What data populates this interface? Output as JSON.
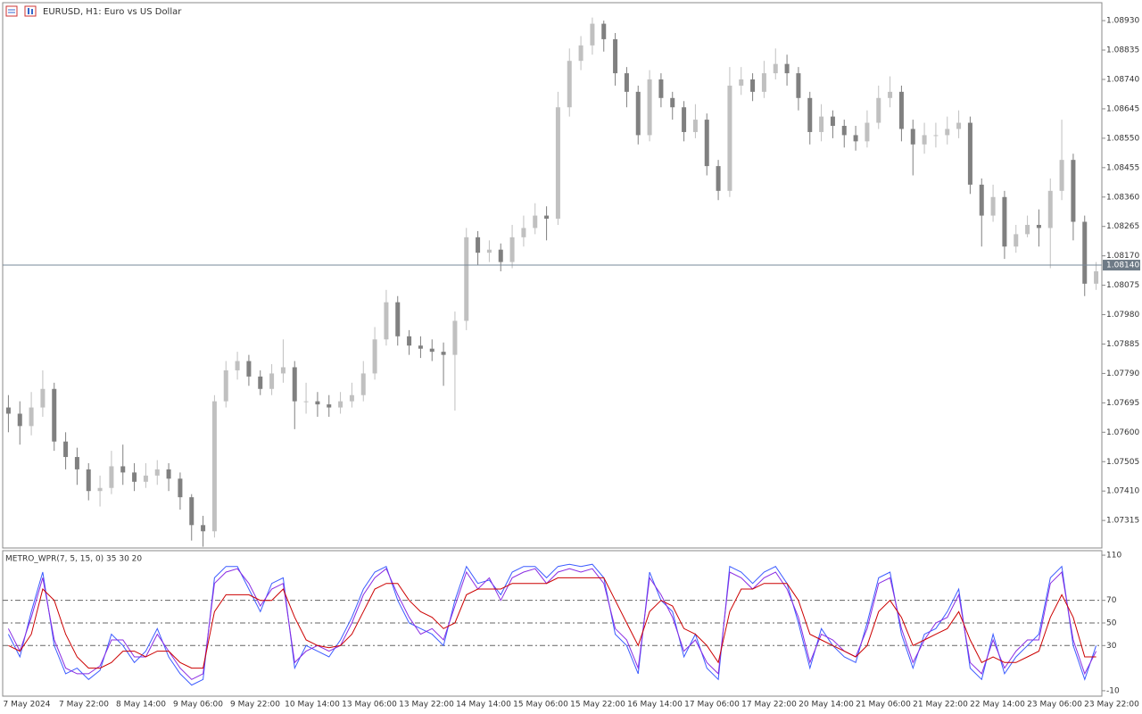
{
  "chart_data": [
    {
      "type": "candlestick",
      "title": "EURUSD, H1:  Euro vs US Dollar",
      "up_color": "#c0c0c0",
      "down_color": "#808080",
      "open": [
        1.0768,
        1.0766,
        1.0762,
        1.0768,
        1.0774,
        1.0757,
        1.0752,
        1.0748,
        1.0741,
        1.0742,
        1.0749,
        1.0747,
        1.0744,
        1.0746,
        1.0748,
        1.0745,
        1.0739,
        1.073,
        1.0728,
        1.077,
        1.078,
        1.0783,
        1.0778,
        1.0774,
        1.0779,
        1.0781,
        1.077,
        1.077,
        1.0769,
        1.0768,
        1.077,
        1.0772,
        1.0779,
        1.079,
        1.0802,
        1.0791,
        1.0788,
        1.0787,
        1.0786,
        1.0785,
        1.0796,
        1.0823,
        1.0818,
        1.0819,
        1.0815,
        1.0823,
        1.0826,
        1.083,
        1.0829,
        1.0865,
        1.088,
        1.0885,
        1.0892,
        1.0887,
        1.0876,
        1.087,
        1.0856,
        1.0874,
        1.0868,
        1.0865,
        1.0857,
        1.0861,
        1.0846,
        1.0838,
        1.0872,
        1.0874,
        1.087,
        1.0876,
        1.0879,
        1.0876,
        1.0868,
        1.0857,
        1.0862,
        1.0859,
        1.0856,
        1.0854,
        1.086,
        1.0868,
        1.087,
        1.0858,
        1.0853,
        1.0856,
        1.0856,
        1.0858,
        1.086,
        1.084,
        1.083,
        1.0836,
        1.082,
        1.0824,
        1.0827,
        1.0826,
        1.0838,
        1.0848,
        1.0828,
        1.0808
      ],
      "high": [
        1.0772,
        1.077,
        1.0773,
        1.078,
        1.0776,
        1.076,
        1.0755,
        1.075,
        1.0746,
        1.0754,
        1.0756,
        1.075,
        1.075,
        1.0751,
        1.075,
        1.0747,
        1.074,
        1.0733,
        1.0772,
        1.0783,
        1.0786,
        1.0785,
        1.078,
        1.0782,
        1.079,
        1.0783,
        1.0776,
        1.0773,
        1.0772,
        1.0773,
        1.0776,
        1.0783,
        1.0794,
        1.0806,
        1.0804,
        1.0793,
        1.0791,
        1.079,
        1.0789,
        1.0799,
        1.0826,
        1.0825,
        1.0822,
        1.0821,
        1.0827,
        1.083,
        1.0834,
        1.0833,
        1.087,
        1.0884,
        1.0888,
        1.0894,
        1.0893,
        1.0889,
        1.0878,
        1.0872,
        1.0877,
        1.0876,
        1.087,
        1.0867,
        1.0866,
        1.0863,
        1.0848,
        1.0878,
        1.0878,
        1.0876,
        1.088,
        1.0884,
        1.0882,
        1.0878,
        1.087,
        1.0866,
        1.0864,
        1.0861,
        1.0859,
        1.0864,
        1.0872,
        1.0875,
        1.0872,
        1.0861,
        1.086,
        1.086,
        1.0862,
        1.0864,
        1.0862,
        1.0842,
        1.084,
        1.0838,
        1.0827,
        1.083,
        1.0832,
        1.0842,
        1.0861,
        1.085,
        1.083,
        1.0815
      ],
      "low": [
        1.076,
        1.0756,
        1.0759,
        1.0765,
        1.0754,
        1.0748,
        1.0743,
        1.0738,
        1.0736,
        1.074,
        1.0743,
        1.0741,
        1.0742,
        1.0743,
        1.0741,
        1.0735,
        1.0725,
        1.0723,
        1.0726,
        1.0768,
        1.0777,
        1.0775,
        1.0772,
        1.0772,
        1.0776,
        1.0761,
        1.0766,
        1.0765,
        1.0765,
        1.0766,
        1.0768,
        1.077,
        1.0777,
        1.0788,
        1.0788,
        1.0785,
        1.0784,
        1.0783,
        1.0775,
        1.0767,
        1.0793,
        1.0814,
        1.0815,
        1.0812,
        1.0813,
        1.082,
        1.0824,
        1.0822,
        1.0827,
        1.0862,
        1.0877,
        1.0882,
        1.0883,
        1.0872,
        1.0865,
        1.0853,
        1.0854,
        1.0865,
        1.0861,
        1.0854,
        1.0855,
        1.0843,
        1.0835,
        1.0836,
        1.0869,
        1.0867,
        1.0868,
        1.0874,
        1.0872,
        1.0864,
        1.0853,
        1.0854,
        1.0855,
        1.0852,
        1.0851,
        1.0852,
        1.0858,
        1.0865,
        1.0854,
        1.0843,
        1.085,
        1.0852,
        1.0853,
        1.0855,
        1.0837,
        1.082,
        1.0828,
        1.0816,
        1.0818,
        1.0823,
        1.082,
        1.0813,
        1.0835,
        1.0822,
        1.0804,
        1.0806
      ],
      "close": [
        1.0766,
        1.0762,
        1.0768,
        1.0774,
        1.0757,
        1.0752,
        1.0748,
        1.0741,
        1.0742,
        1.0749,
        1.0747,
        1.0744,
        1.0746,
        1.0748,
        1.0745,
        1.0739,
        1.073,
        1.0728,
        1.077,
        1.078,
        1.0783,
        1.0778,
        1.0774,
        1.0779,
        1.0781,
        1.077,
        1.077,
        1.0769,
        1.0768,
        1.077,
        1.0772,
        1.0779,
        1.079,
        1.0802,
        1.0791,
        1.0788,
        1.0787,
        1.0786,
        1.0785,
        1.0796,
        1.0823,
        1.0818,
        1.0819,
        1.0815,
        1.0823,
        1.0826,
        1.083,
        1.0829,
        1.0865,
        1.088,
        1.0885,
        1.0892,
        1.0887,
        1.0876,
        1.087,
        1.0856,
        1.0874,
        1.0868,
        1.0865,
        1.0857,
        1.0861,
        1.0846,
        1.0838,
        1.0872,
        1.0874,
        1.087,
        1.0876,
        1.0879,
        1.0876,
        1.0868,
        1.0857,
        1.0862,
        1.0859,
        1.0856,
        1.0854,
        1.086,
        1.0868,
        1.087,
        1.0858,
        1.0853,
        1.0856,
        1.0856,
        1.0858,
        1.086,
        1.084,
        1.083,
        1.0836,
        1.082,
        1.0824,
        1.0827,
        1.0826,
        1.0838,
        1.0848,
        1.0828,
        1.0808,
        1.0812
      ],
      "ylim": [
        1.07226,
        1.08988
      ],
      "yticks": [
        {
          "value": 1.0893,
          "label": "1.08930"
        },
        1.08835,
        {
          "value": 1.0874,
          "label": "1.08740"
        },
        1.08645,
        {
          "value": 1.0855,
          "label": "1.08550"
        },
        1.08455,
        {
          "value": 1.0836,
          "label": "1.08360"
        },
        1.08265,
        {
          "value": 1.0817,
          "label": "1.08170"
        },
        1.08075,
        {
          "value": 1.0798,
          "label": "1.07980"
        },
        1.07885,
        {
          "value": 1.0779,
          "label": "1.07790"
        },
        1.07695,
        {
          "value": 1.076,
          "label": "1.07600"
        },
        1.07505,
        {
          "value": 1.0741,
          "label": "1.07410"
        },
        1.07315
      ],
      "price_line": {
        "value": 1.0814,
        "label": "1.08140"
      }
    },
    {
      "type": "line",
      "title": "METRO_WPR(7, 5, 15, 0) 35 30 20",
      "series": [
        {
          "color": "#3b5bff",
          "values": [
            40,
            20,
            60,
            95,
            30,
            5,
            10,
            0,
            8,
            40,
            30,
            15,
            25,
            45,
            20,
            5,
            -5,
            0,
            90,
            100,
            100,
            80,
            60,
            85,
            90,
            10,
            30,
            25,
            20,
            35,
            55,
            80,
            95,
            100,
            70,
            50,
            45,
            40,
            30,
            70,
            100,
            85,
            88,
            75,
            95,
            100,
            100,
            90,
            100,
            102,
            100,
            102,
            90,
            40,
            30,
            5,
            95,
            70,
            60,
            20,
            40,
            10,
            0,
            100,
            95,
            85,
            95,
            100,
            85,
            50,
            10,
            45,
            30,
            20,
            15,
            50,
            90,
            95,
            40,
            10,
            40,
            45,
            60,
            80,
            10,
            0,
            40,
            5,
            20,
            30,
            40,
            90,
            100,
            30,
            0,
            30
          ]
        },
        {
          "color": "#8a2be2",
          "values": [
            45,
            25,
            55,
            90,
            35,
            10,
            5,
            5,
            12,
            35,
            35,
            20,
            20,
            40,
            25,
            10,
            0,
            5,
            85,
            95,
            98,
            85,
            65,
            80,
            85,
            15,
            25,
            30,
            25,
            30,
            50,
            75,
            90,
            98,
            75,
            55,
            40,
            45,
            35,
            65,
            95,
            80,
            90,
            70,
            90,
            95,
            98,
            85,
            95,
            98,
            95,
            98,
            85,
            45,
            35,
            10,
            90,
            75,
            55,
            25,
            35,
            15,
            5,
            95,
            90,
            80,
            90,
            95,
            80,
            55,
            15,
            40,
            35,
            25,
            20,
            45,
            85,
            90,
            45,
            15,
            35,
            50,
            55,
            75,
            15,
            5,
            35,
            10,
            25,
            35,
            35,
            85,
            95,
            35,
            5,
            25
          ]
        },
        {
          "color": "#cc0000",
          "values": [
            30,
            25,
            40,
            80,
            70,
            40,
            20,
            10,
            10,
            15,
            25,
            25,
            20,
            25,
            25,
            15,
            10,
            10,
            60,
            75,
            75,
            75,
            70,
            70,
            80,
            55,
            35,
            30,
            28,
            30,
            40,
            60,
            80,
            85,
            85,
            70,
            60,
            55,
            45,
            50,
            75,
            80,
            80,
            80,
            85,
            85,
            85,
            85,
            90,
            90,
            90,
            90,
            90,
            70,
            50,
            30,
            60,
            70,
            65,
            45,
            40,
            30,
            15,
            60,
            80,
            80,
            85,
            85,
            85,
            70,
            40,
            35,
            30,
            25,
            20,
            30,
            60,
            70,
            55,
            30,
            35,
            40,
            45,
            60,
            35,
            15,
            20,
            15,
            15,
            20,
            25,
            55,
            75,
            55,
            20,
            20
          ]
        }
      ],
      "levels": [
        70,
        50,
        30
      ],
      "ylim": [
        -14.8,
        114
      ],
      "yticks": [
        110,
        70,
        50,
        30,
        -10
      ],
      "x_labels": [
        "7 May 2024",
        "7 May 22:00",
        "8 May 14:00",
        "9 May 06:00",
        "9 May 22:00",
        "10 May 14:00",
        "13 May 06:00",
        "13 May 22:00",
        "14 May 14:00",
        "15 May 06:00",
        "15 May 22:00",
        "16 May 14:00",
        "17 May 06:00",
        "17 May 22:00",
        "20 May 14:00",
        "21 May 06:00",
        "21 May 22:00",
        "22 May 14:00",
        "23 May 06:00",
        "23 May 22:00"
      ]
    }
  ]
}
